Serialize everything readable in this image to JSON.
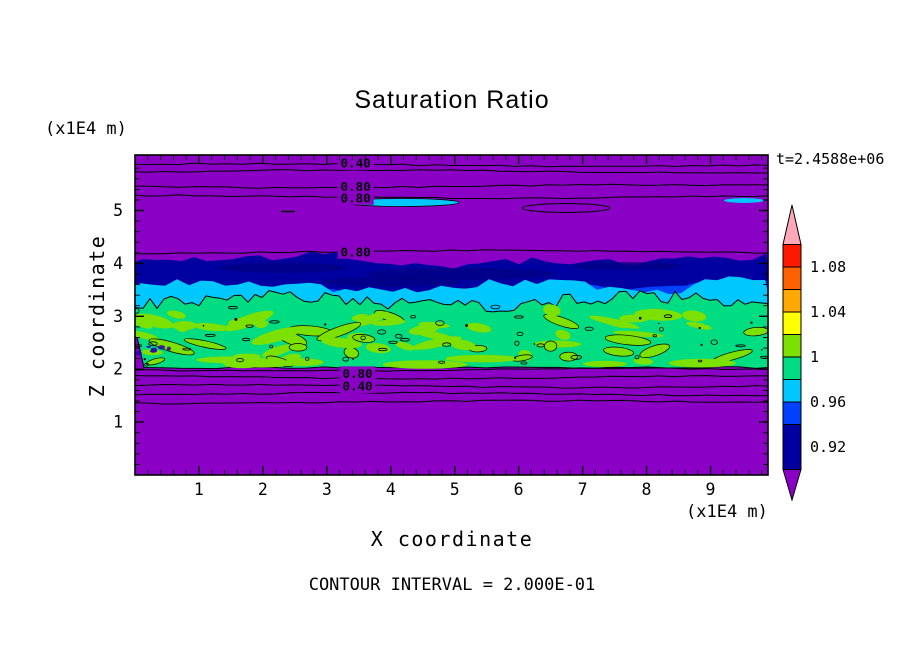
{
  "page": {
    "title": "Saturation Ratio",
    "time_label": "t=2.4588e+06",
    "y_unit_label": "(x1E4 m)",
    "x_unit_label": "(x1E4 m)",
    "x_axis_label": "X coordinate",
    "y_axis_label": "Z coordinate",
    "footnote": "CONTOUR INTERVAL = 2.000E-01"
  },
  "chart_data": {
    "type": "heatmap",
    "title": "Saturation Ratio",
    "xlabel": "X coordinate",
    "ylabel": "Z coordinate",
    "x_unit": "(x1E4 m)",
    "y_unit": "(x1E4 m)",
    "time_annotation": "t=2.4588e+06",
    "contour_interval_note": "CONTOUR INTERVAL = 2.000E-01",
    "contour_interval": 0.2,
    "x_range": [
      0,
      9.9
    ],
    "y_range": [
      0,
      6.05
    ],
    "x_ticks": [
      1,
      2,
      3,
      4,
      5,
      6,
      7,
      8,
      9
    ],
    "y_ticks": [
      1,
      2,
      3,
      4,
      5
    ],
    "x_minor_step": 0.2,
    "y_minor_step": 0.2,
    "field": "saturation ratio",
    "layers": [
      {
        "value_range": "< 0.90",
        "color": "#8A00C4",
        "region": "background above z=4.15 and below z=1.95"
      },
      {
        "value_range": "0.90-0.94",
        "color": "#0000A0",
        "region": "navy band z 3.5-4.1"
      },
      {
        "value_range": "0.94-0.96",
        "color": "#0040FF",
        "region": "blue fringe at navy/cyan boundary"
      },
      {
        "value_range": "0.96-0.98",
        "color": "#00C8FF",
        "region": "cyan band z 3.2-3.6"
      },
      {
        "value_range": "0.98-1.00",
        "color": "#00DC82",
        "region": "green band z 2.0-3.3"
      },
      {
        "value_range": "1.00-1.02",
        "color": "#7CE000",
        "region": "yellow-green patches inside green band"
      }
    ],
    "contour_line_levels": [
      5.86,
      5.74,
      5.46,
      5.26,
      4.22,
      1.99,
      1.85,
      1.68,
      1.53,
      1.38
    ],
    "contour_labels": [
      {
        "text": "0.40",
        "x": 3.45,
        "z": 5.9
      },
      {
        "text": "0.80",
        "x": 3.45,
        "z": 5.45
      },
      {
        "text": "0.80",
        "x": 3.45,
        "z": 5.24
      },
      {
        "text": "0.80",
        "x": 3.45,
        "z": 4.22
      },
      {
        "text": "0.80",
        "x": 3.48,
        "z": 1.92
      },
      {
        "text": "0.40",
        "x": 3.48,
        "z": 1.68
      }
    ],
    "colorbar": {
      "position": "right",
      "below_color": "#8A00C4",
      "above_color": "#FFA8B8",
      "segments": [
        {
          "from": 0.9,
          "to": 0.94,
          "color": "#0000A0"
        },
        {
          "from": 0.94,
          "to": 0.96,
          "color": "#0040FF"
        },
        {
          "from": 0.96,
          "to": 0.98,
          "color": "#00C8FF"
        },
        {
          "from": 0.98,
          "to": 1.0,
          "color": "#00DC82"
        },
        {
          "from": 1.0,
          "to": 1.02,
          "color": "#7CE000"
        },
        {
          "from": 1.02,
          "to": 1.04,
          "color": "#FFFF00"
        },
        {
          "from": 1.04,
          "to": 1.06,
          "color": "#FFA800"
        },
        {
          "from": 1.06,
          "to": 1.08,
          "color": "#FF6000"
        },
        {
          "from": 1.08,
          "to": 1.1,
          "color": "#FF1800"
        }
      ],
      "labels": [
        {
          "value": 0.92,
          "text": "0.92"
        },
        {
          "value": 0.96,
          "text": "0.96"
        },
        {
          "value": 1.0,
          "text": "1"
        },
        {
          "value": 1.04,
          "text": "1.04"
        },
        {
          "value": 1.08,
          "text": "1.08"
        }
      ]
    }
  }
}
